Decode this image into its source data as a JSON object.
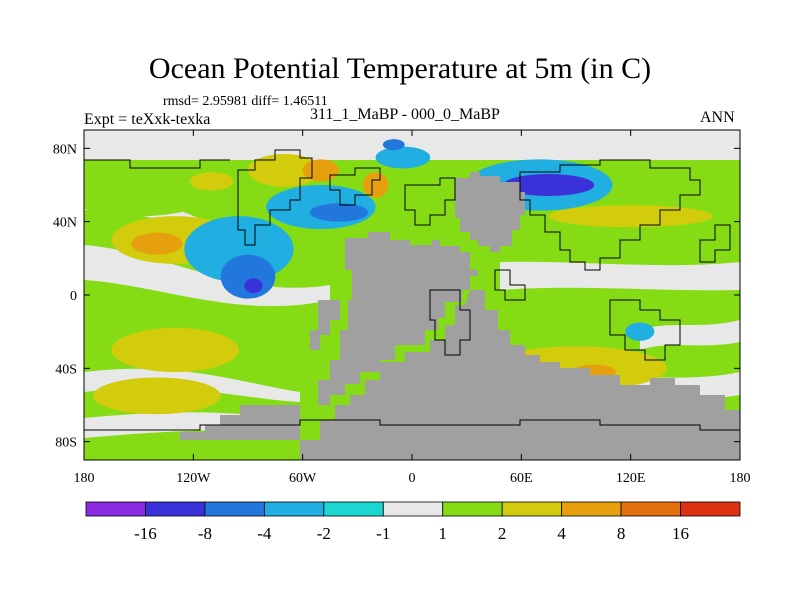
{
  "chart_data": {
    "type": "heatmap",
    "title": "Ocean Potential Temperature at 5m (in C)",
    "stats": "rmsd= 2.95981 diff= 1.46511",
    "left_label": "Expt = teXxk-texka",
    "center_label": "311_1_MaBP - 000_0_MaBP",
    "right_label": "ANN",
    "x_axis": {
      "range": [
        -180,
        180
      ],
      "ticks": [
        {
          "value": -180,
          "label": "180"
        },
        {
          "value": -120,
          "label": "120W"
        },
        {
          "value": -60,
          "label": "60W"
        },
        {
          "value": 0,
          "label": "0"
        },
        {
          "value": 60,
          "label": "60E"
        },
        {
          "value": 120,
          "label": "120E"
        },
        {
          "value": 180,
          "label": "180"
        }
      ]
    },
    "y_axis": {
      "range": [
        -90,
        90
      ],
      "ticks": [
        {
          "value": 80,
          "label": "80N"
        },
        {
          "value": 40,
          "label": "40N"
        },
        {
          "value": 0,
          "label": "0"
        },
        {
          "value": -40,
          "label": "40S"
        },
        {
          "value": -80,
          "label": "80S"
        }
      ]
    },
    "colorbar": {
      "colors": [
        "#8a2be2",
        "#3a32d8",
        "#2277dd",
        "#21aee0",
        "#1ad7d2",
        "#e8e8e8",
        "#86dc14",
        "#d2cc0c",
        "#e6a00e",
        "#e4700e",
        "#dc3214"
      ],
      "boundaries": [
        "-16",
        "-8",
        "-4",
        "-2",
        "-1",
        "1",
        "2",
        "4",
        "8",
        "16"
      ]
    },
    "land_color": "#a0a0a0",
    "regions": [
      {
        "name": "north-pacific-warm-band",
        "level": 6,
        "lon": -150,
        "lat": 55,
        "rx": 40,
        "ry": 12
      },
      {
        "name": "north-pacific-warm-core",
        "level": 7,
        "lon": -110,
        "lat": 62,
        "rx": 12,
        "ry": 5
      },
      {
        "name": "subtropical-n-pacific-warm",
        "level": 7,
        "lon": -130,
        "lat": 30,
        "rx": 35,
        "ry": 13
      },
      {
        "name": "subtropical-n-pacific-core",
        "level": 8,
        "lon": -140,
        "lat": 28,
        "rx": 14,
        "ry": 6
      },
      {
        "name": "central-pacific-cool",
        "level": 3,
        "lon": -95,
        "lat": 25,
        "rx": 30,
        "ry": 18
      },
      {
        "name": "central-pacific-cold",
        "level": 2,
        "lon": -90,
        "lat": 10,
        "rx": 15,
        "ry": 12
      },
      {
        "name": "equatorial-pacific-cold-core",
        "level": 1,
        "lon": -87,
        "lat": 5,
        "rx": 5,
        "ry": 4
      },
      {
        "name": "north-atlantic-cool",
        "level": 3,
        "lon": -50,
        "lat": 48,
        "rx": 30,
        "ry": 12
      },
      {
        "name": "north-atlantic-cold",
        "level": 2,
        "lon": -40,
        "lat": 45,
        "rx": 16,
        "ry": 5
      },
      {
        "name": "arctic-cool-patch",
        "level": 3,
        "lon": -5,
        "lat": 75,
        "rx": 15,
        "ry": 6
      },
      {
        "name": "arctic-cold-core",
        "level": 2,
        "lon": -10,
        "lat": 82,
        "rx": 6,
        "ry": 3
      },
      {
        "name": "north-europe-warm",
        "level": 7,
        "lon": -70,
        "lat": 68,
        "rx": 20,
        "ry": 9
      },
      {
        "name": "north-europe-warm-core",
        "level": 8,
        "lon": -50,
        "lat": 68,
        "rx": 10,
        "ry": 6
      },
      {
        "name": "siberia-warm-core",
        "level": 8,
        "lon": -20,
        "lat": 60,
        "rx": 7,
        "ry": 7
      },
      {
        "name": "east-asia-cold-band",
        "level": 3,
        "lon": 70,
        "lat": 60,
        "rx": 40,
        "ry": 14
      },
      {
        "name": "east-asia-cold-core",
        "level": 1,
        "lon": 75,
        "lat": 60,
        "rx": 25,
        "ry": 6
      },
      {
        "name": "east-nhemi-warm-band",
        "level": 7,
        "lon": 120,
        "lat": 43,
        "rx": 45,
        "ry": 6
      },
      {
        "name": "south-pacific-warm",
        "level": 7,
        "lon": -130,
        "lat": -30,
        "rx": 35,
        "ry": 12
      },
      {
        "name": "southern-ocean-warm",
        "level": 7,
        "lon": -140,
        "lat": -55,
        "rx": 35,
        "ry": 10
      },
      {
        "name": "indian-ocean-warm",
        "level": 7,
        "lon": 90,
        "lat": -40,
        "rx": 50,
        "ry": 12
      },
      {
        "name": "indian-ocean-warm-core",
        "level": 8,
        "lon": 100,
        "lat": -42,
        "rx": 12,
        "ry": 4
      },
      {
        "name": "east-pacific-cool-south",
        "level": 3,
        "lon": 125,
        "lat": -20,
        "rx": 8,
        "ry": 5
      }
    ]
  }
}
